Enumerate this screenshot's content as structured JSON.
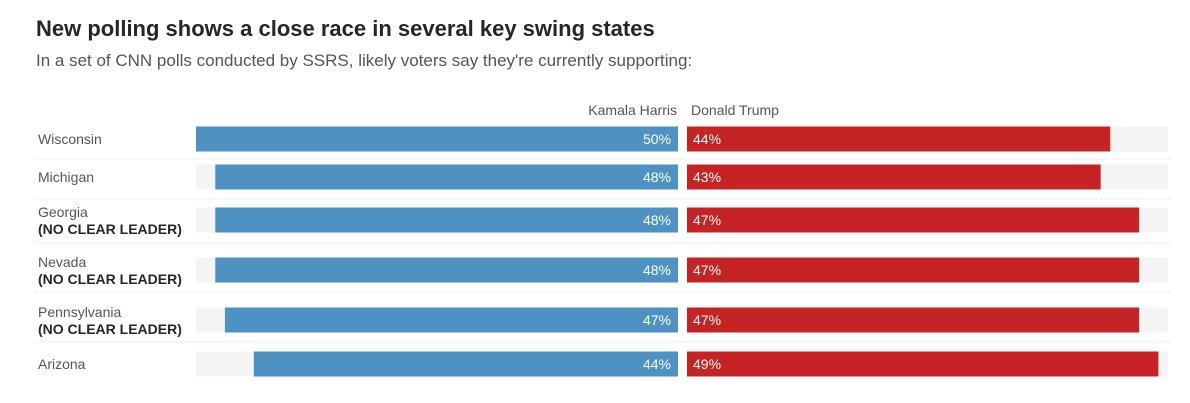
{
  "title": "New polling shows a close race in several key swing states",
  "subtitle": "In a set of CNN polls conducted by SSRS, likely voters say they're currently supporting:",
  "legend": {
    "harris": "Kamala Harris",
    "trump": "Donald Trump"
  },
  "colors": {
    "harris": "#4e92c3",
    "trump": "#c62424",
    "track": "#f4f4f4",
    "divider": "#e2e2e2"
  },
  "chart_data": {
    "type": "bar",
    "orientation": "horizontal-diverging",
    "title": "New polling shows a close race in several key swing states",
    "subtitle": "In a set of CNN polls conducted by SSRS, likely voters say they're currently supporting:",
    "categories": [
      "Wisconsin",
      "Michigan",
      "Georgia",
      "Nevada",
      "Pennsylvania",
      "Arizona"
    ],
    "notes": [
      "",
      "",
      "(NO CLEAR LEADER)",
      "(NO CLEAR LEADER)",
      "(NO CLEAR LEADER)",
      ""
    ],
    "series": [
      {
        "name": "Kamala Harris",
        "values": [
          50,
          48,
          48,
          48,
          47,
          44
        ],
        "labels": [
          "50%",
          "48%",
          "48%",
          "48%",
          "47%",
          "44%"
        ]
      },
      {
        "name": "Donald Trump",
        "values": [
          44,
          43,
          47,
          47,
          47,
          49
        ],
        "labels": [
          "44%",
          "43%",
          "47%",
          "47%",
          "47%",
          "49%"
        ]
      }
    ],
    "xlim": [
      0,
      50
    ]
  }
}
